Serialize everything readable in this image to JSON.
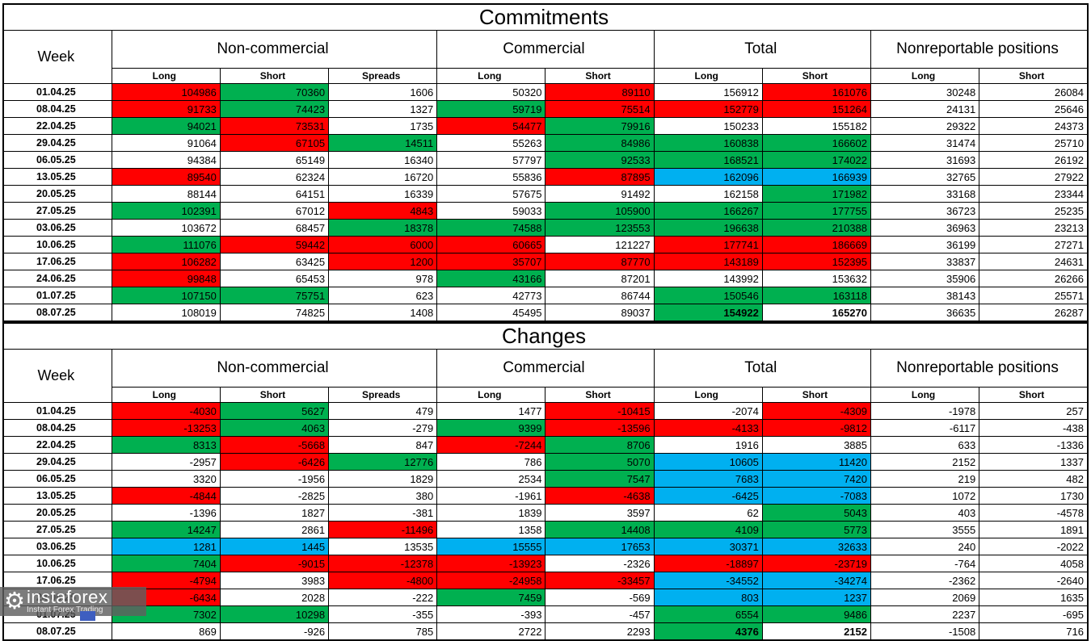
{
  "colors": {
    "red": "#FF0000",
    "green": "#00B050",
    "blue": "#00B0F0",
    "white": "#FFFFFF"
  },
  "watermark": {
    "brand": "instaforex",
    "tagline": "Instant Forex Trading",
    "gear_icon": "⚙"
  },
  "chart_data": [
    {
      "type": "table",
      "title": "Commitments",
      "week_header": "Week",
      "groups": [
        {
          "label": "Non-commercial",
          "cols": [
            "Long",
            "Short",
            "Spreads"
          ]
        },
        {
          "label": "Commercial",
          "cols": [
            "Long",
            "Short"
          ]
        },
        {
          "label": "Total",
          "cols": [
            "Long",
            "Short"
          ]
        },
        {
          "label": "Nonreportable positions",
          "cols": [
            "Long",
            "Short"
          ]
        }
      ],
      "rows": [
        {
          "week": "01.04.25",
          "values": [
            104986,
            70360,
            1606,
            50320,
            89110,
            156912,
            161076,
            30248,
            26084
          ],
          "colors": "RGWWRWRWW"
        },
        {
          "week": "08.04.25",
          "values": [
            91733,
            74423,
            1327,
            59719,
            75514,
            152779,
            151264,
            24131,
            25646
          ],
          "colors": "RGWGRRRWW"
        },
        {
          "week": "22.04.25",
          "values": [
            94021,
            73531,
            1735,
            54477,
            79916,
            150233,
            155182,
            29322,
            24373
          ],
          "colors": "GRWRGWWWW"
        },
        {
          "week": "29.04.25",
          "values": [
            91064,
            67105,
            14511,
            55263,
            84986,
            160838,
            166602,
            31474,
            25710
          ],
          "colors": "WRGWGGGWW"
        },
        {
          "week": "06.05.25",
          "values": [
            94384,
            65149,
            16340,
            57797,
            92533,
            168521,
            174022,
            31693,
            26192
          ],
          "colors": "WWWWGGGWW"
        },
        {
          "week": "13.05.25",
          "values": [
            89540,
            62324,
            16720,
            55836,
            87895,
            162096,
            166939,
            32765,
            27922
          ],
          "colors": "RWWWRBBWW"
        },
        {
          "week": "20.05.25",
          "values": [
            88144,
            64151,
            16339,
            57675,
            91492,
            162158,
            171982,
            33168,
            23344
          ],
          "colors": "WWWWWWGWW"
        },
        {
          "week": "27.05.25",
          "values": [
            102391,
            67012,
            4843,
            59033,
            105900,
            166267,
            177755,
            36723,
            25235
          ],
          "colors": "GWRWGGGWW"
        },
        {
          "week": "03.06.25",
          "values": [
            103672,
            68457,
            18378,
            74588,
            123553,
            196638,
            210388,
            36963,
            23213
          ],
          "colors": "WWGGGGGWW"
        },
        {
          "week": "10.06.25",
          "values": [
            111076,
            59442,
            6000,
            60665,
            121227,
            177741,
            186669,
            36199,
            27271
          ],
          "colors": "GRRRWRRWW"
        },
        {
          "week": "17.06.25",
          "values": [
            106282,
            63425,
            1200,
            35707,
            87770,
            143189,
            152395,
            33837,
            24631
          ],
          "colors": "RWRRRRRWW"
        },
        {
          "week": "24.06.25",
          "values": [
            99848,
            65453,
            978,
            43166,
            87201,
            143992,
            153632,
            35906,
            26266
          ],
          "colors": "RWWGWWWWW"
        },
        {
          "week": "01.07.25",
          "values": [
            107150,
            75751,
            623,
            42773,
            86744,
            150546,
            163118,
            38143,
            25571
          ],
          "colors": "GGWWWGGWW"
        },
        {
          "week": "08.07.25",
          "values": [
            108019,
            74825,
            1408,
            45495,
            89037,
            154922,
            165270,
            36635,
            26287
          ],
          "colors": "WWWWWGWWW",
          "bold": [
            5,
            6
          ]
        }
      ]
    },
    {
      "type": "table",
      "title": "Changes",
      "week_header": "Week",
      "groups": [
        {
          "label": "Non-commercial",
          "cols": [
            "Long",
            "Short",
            "Spreads"
          ]
        },
        {
          "label": "Commercial",
          "cols": [
            "Long",
            "Short"
          ]
        },
        {
          "label": "Total",
          "cols": [
            "Long",
            "Short"
          ]
        },
        {
          "label": "Nonreportable positions",
          "cols": [
            "Long",
            "Short"
          ]
        }
      ],
      "rows": [
        {
          "week": "01.04.25",
          "values": [
            -4030,
            5627,
            479,
            1477,
            -10415,
            -2074,
            -4309,
            -1978,
            257
          ],
          "colors": "RGWWRWRWW"
        },
        {
          "week": "08.04.25",
          "values": [
            -13253,
            4063,
            -279,
            9399,
            -13596,
            -4133,
            -9812,
            -6117,
            -438
          ],
          "colors": "RGWGRRRWW"
        },
        {
          "week": "22.04.25",
          "values": [
            8313,
            -5668,
            847,
            -7244,
            8706,
            1916,
            3885,
            633,
            -1336
          ],
          "colors": "GRWRGWWWW"
        },
        {
          "week": "29.04.25",
          "values": [
            -2957,
            -6426,
            12776,
            786,
            5070,
            10605,
            11420,
            2152,
            1337
          ],
          "colors": "WRGWGBBWW"
        },
        {
          "week": "06.05.25",
          "values": [
            3320,
            -1956,
            1829,
            2534,
            7547,
            7683,
            7420,
            219,
            482
          ],
          "colors": "WWWWGBBWW"
        },
        {
          "week": "13.05.25",
          "values": [
            -4844,
            -2825,
            380,
            -1961,
            -4638,
            -6425,
            -7083,
            1072,
            1730
          ],
          "colors": "RWWWRBBWW"
        },
        {
          "week": "20.05.25",
          "values": [
            -1396,
            1827,
            -381,
            1839,
            3597,
            62,
            5043,
            403,
            -4578
          ],
          "colors": "WWWWWWGWW"
        },
        {
          "week": "27.05.25",
          "values": [
            14247,
            2861,
            -11496,
            1358,
            14408,
            4109,
            5773,
            3555,
            1891
          ],
          "colors": "GWRWGGGWW"
        },
        {
          "week": "03.06.25",
          "values": [
            1281,
            1445,
            13535,
            15555,
            17653,
            30371,
            32633,
            240,
            -2022
          ],
          "colors": "BBWBBBBWW"
        },
        {
          "week": "10.06.25",
          "values": [
            7404,
            -9015,
            -12378,
            -13923,
            -2326,
            -18897,
            -23719,
            -764,
            4058
          ],
          "colors": "GRRRWRRWW"
        },
        {
          "week": "17.06.25",
          "values": [
            -4794,
            3983,
            -4800,
            -24958,
            -33457,
            -34552,
            -34274,
            -2362,
            -2640
          ],
          "colors": "RWRRRBBWW"
        },
        {
          "week": "24.06.25",
          "values": [
            -6434,
            2028,
            -222,
            7459,
            -569,
            803,
            1237,
            2069,
            1635
          ],
          "colors": "RWWGWBBWW"
        },
        {
          "week": "01.07.25",
          "values": [
            7302,
            10298,
            -355,
            -393,
            -457,
            6554,
            9486,
            2237,
            -695
          ],
          "colors": "GGWWWGGWW"
        },
        {
          "week": "08.07.25",
          "values": [
            869,
            -926,
            785,
            2722,
            2293,
            4376,
            2152,
            -1508,
            716
          ],
          "colors": "WWWWWGWWW",
          "bold": [
            5,
            6
          ]
        }
      ]
    }
  ]
}
